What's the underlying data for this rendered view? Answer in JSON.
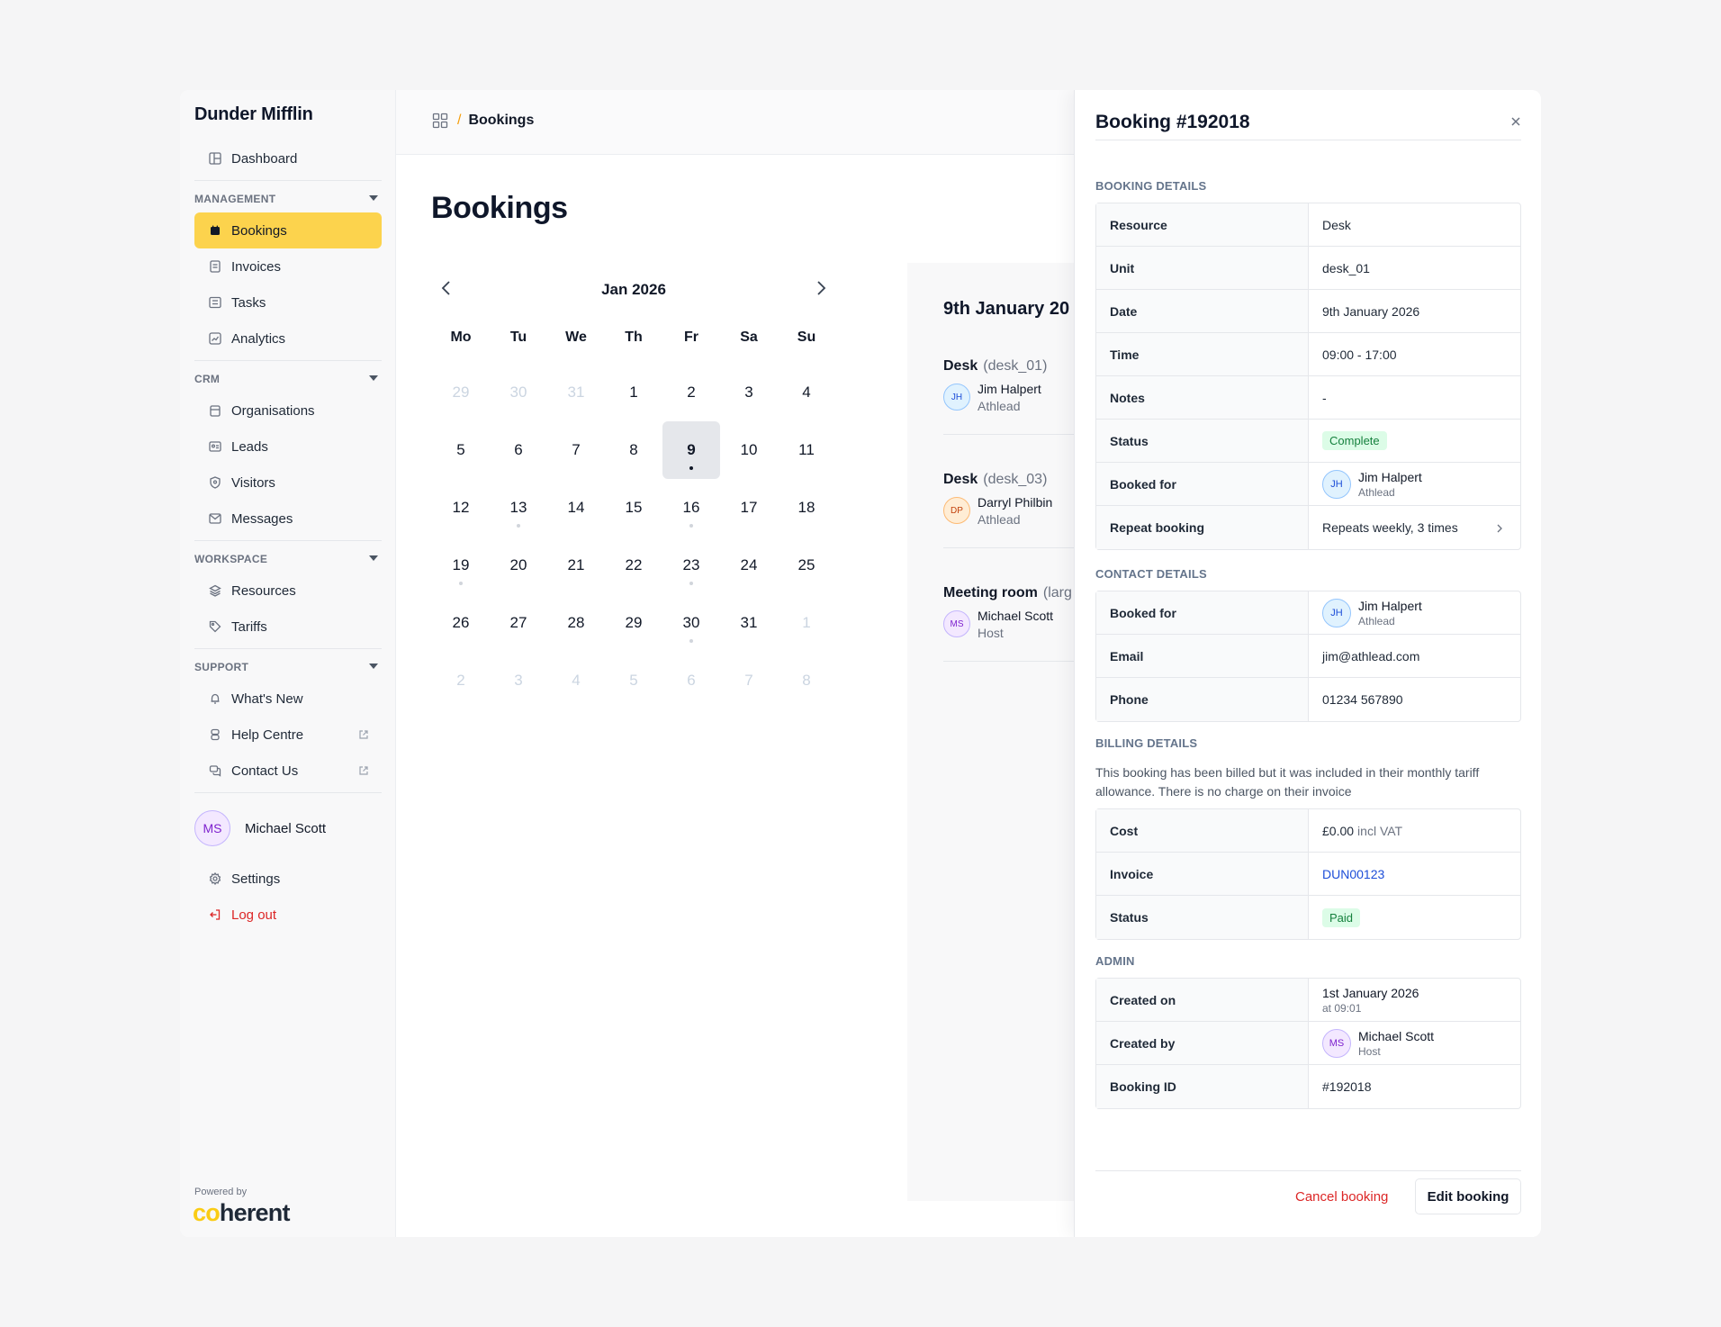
{
  "brand": "Dunder Mifflin",
  "sidebar": {
    "dashboard": "Dashboard",
    "sections": {
      "management": "MANAGEMENT",
      "crm": "CRM",
      "workspace": "WORKSPACE",
      "support": "SUPPORT"
    },
    "items": {
      "bookings": "Bookings",
      "invoices": "Invoices",
      "tasks": "Tasks",
      "analytics": "Analytics",
      "organisations": "Organisations",
      "leads": "Leads",
      "visitors": "Visitors",
      "messages": "Messages",
      "resources": "Resources",
      "tariffs": "Tariffs",
      "whats_new": "What's New",
      "help_centre": "Help Centre",
      "contact_us": "Contact Us",
      "settings": "Settings",
      "logout": "Log out"
    },
    "user": {
      "initials": "MS",
      "name": "Michael Scott"
    },
    "powered_by": "Powered by",
    "logo": {
      "part1": "co",
      "part2": "herent"
    }
  },
  "breadcrumb": {
    "current": "Bookings"
  },
  "page_title": "Bookings",
  "calendar": {
    "month": "Jan 2026",
    "weekdays": [
      "Mo",
      "Tu",
      "We",
      "Th",
      "Fr",
      "Sa",
      "Su"
    ],
    "weeks": [
      [
        {
          "d": "29",
          "m": true
        },
        {
          "d": "30",
          "m": true
        },
        {
          "d": "31",
          "m": true
        },
        {
          "d": "1"
        },
        {
          "d": "2"
        },
        {
          "d": "3"
        },
        {
          "d": "4"
        }
      ],
      [
        {
          "d": "5"
        },
        {
          "d": "6"
        },
        {
          "d": "7"
        },
        {
          "d": "8"
        },
        {
          "d": "9",
          "sel": true,
          "dot": true
        },
        {
          "d": "10"
        },
        {
          "d": "11"
        }
      ],
      [
        {
          "d": "12"
        },
        {
          "d": "13",
          "dot": true
        },
        {
          "d": "14"
        },
        {
          "d": "15"
        },
        {
          "d": "16",
          "dot": true
        },
        {
          "d": "17"
        },
        {
          "d": "18"
        }
      ],
      [
        {
          "d": "19",
          "dot": true
        },
        {
          "d": "20"
        },
        {
          "d": "21"
        },
        {
          "d": "22"
        },
        {
          "d": "23",
          "dot": true
        },
        {
          "d": "24"
        },
        {
          "d": "25"
        }
      ],
      [
        {
          "d": "26"
        },
        {
          "d": "27"
        },
        {
          "d": "28"
        },
        {
          "d": "29"
        },
        {
          "d": "30",
          "dot": true
        },
        {
          "d": "31"
        },
        {
          "d": "1",
          "m": true
        }
      ],
      [
        {
          "d": "2",
          "m": true
        },
        {
          "d": "3",
          "m": true
        },
        {
          "d": "4",
          "m": true
        },
        {
          "d": "5",
          "m": true
        },
        {
          "d": "6",
          "m": true
        },
        {
          "d": "7",
          "m": true
        },
        {
          "d": "8",
          "m": true
        }
      ]
    ]
  },
  "day_pane": {
    "title": "9th January 20",
    "bookings": [
      {
        "resource": "Desk",
        "unit": "(desk_01)",
        "initials": "JH",
        "color": "blue",
        "name": "Jim Halpert",
        "org": "Athlead"
      },
      {
        "resource": "Desk",
        "unit": "(desk_03)",
        "initials": "DP",
        "color": "orange",
        "name": "Darryl Philbin",
        "org": "Athlead"
      },
      {
        "resource": "Meeting room",
        "unit": "(larg",
        "initials": "MS",
        "color": "purple",
        "name": "Michael Scott",
        "org": "Host"
      }
    ]
  },
  "drawer": {
    "title": "Booking #192018",
    "booking_details": {
      "title": "BOOKING DETAILS",
      "resource_label": "Resource",
      "resource": "Desk",
      "unit_label": "Unit",
      "unit": "desk_01",
      "date_label": "Date",
      "date": "9th January 2026",
      "time_label": "Time",
      "time": "09:00 - 17:00",
      "notes_label": "Notes",
      "notes": "-",
      "status_label": "Status",
      "status": "Complete",
      "booked_for_label": "Booked for",
      "booked_for_initials": "JH",
      "booked_for_name": "Jim Halpert",
      "booked_for_org": "Athlead",
      "repeat_label": "Repeat booking",
      "repeat": "Repeats weekly, 3 times"
    },
    "contact_details": {
      "title": "CONTACT DETAILS",
      "booked_for_label": "Booked for",
      "initials": "JH",
      "name": "Jim Halpert",
      "org": "Athlead",
      "email_label": "Email",
      "email": "jim@athlead.com",
      "phone_label": "Phone",
      "phone": "01234 567890"
    },
    "billing_details": {
      "title": "BILLING DETAILS",
      "note": "This booking has been billed but it was included in their monthly tariff allowance. There is no charge on their invoice",
      "cost_label": "Cost",
      "cost": "£0.00",
      "cost_suffix": "incl VAT",
      "invoice_label": "Invoice",
      "invoice": "DUN00123",
      "status_label": "Status",
      "status": "Paid"
    },
    "admin": {
      "title": "ADMIN",
      "created_on_label": "Created on",
      "created_on": "1st January 2026",
      "created_at": "at 09:01",
      "created_by_label": "Created by",
      "created_by_initials": "MS",
      "created_by_name": "Michael Scott",
      "created_by_role": "Host",
      "booking_id_label": "Booking ID",
      "booking_id": "#192018"
    },
    "cancel_label": "Cancel booking",
    "edit_label": "Edit booking"
  },
  "colors": {
    "accent": "#fcd34d",
    "danger": "#dc2626",
    "link": "#1d4ed8",
    "success_bg": "#dcfce7",
    "success_fg": "#15803d"
  }
}
